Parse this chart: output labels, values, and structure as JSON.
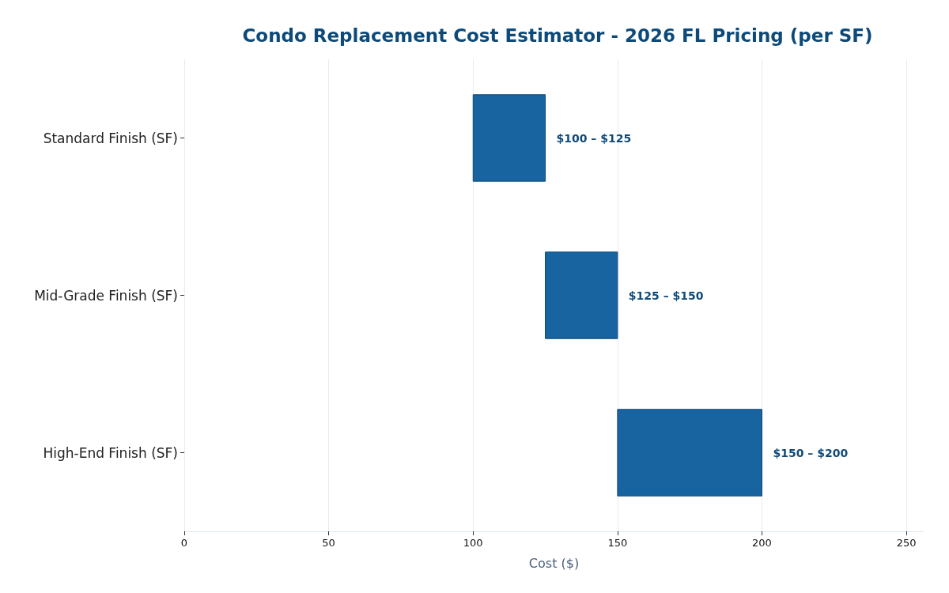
{
  "chart_data": {
    "type": "bar",
    "orientation": "horizontal",
    "title": "Condo Replacement Cost Estimator - 2026 FL Pricing (per SF)",
    "xlabel": "Cost ($)",
    "categories": [
      "Standard Finish (SF)",
      "Mid-Grade Finish (SF)",
      "High-End Finish (SF)"
    ],
    "base": [
      100,
      125,
      150
    ],
    "values": [
      25,
      25,
      50
    ],
    "annotations": [
      {
        "text": "$100 – $125",
        "x": 125,
        "y": "Standard Finish (SF)"
      },
      {
        "text": "$125 – $150",
        "x": 150,
        "y": "Mid-Grade Finish (SF)"
      },
      {
        "text": "$150 – $200",
        "x": 200,
        "y": "High-End Finish (SF)"
      }
    ],
    "color": "#1764a0",
    "xlim": [
      0,
      256
    ],
    "xticks": [
      0,
      50,
      100,
      150,
      200,
      250
    ],
    "grid": "x"
  }
}
